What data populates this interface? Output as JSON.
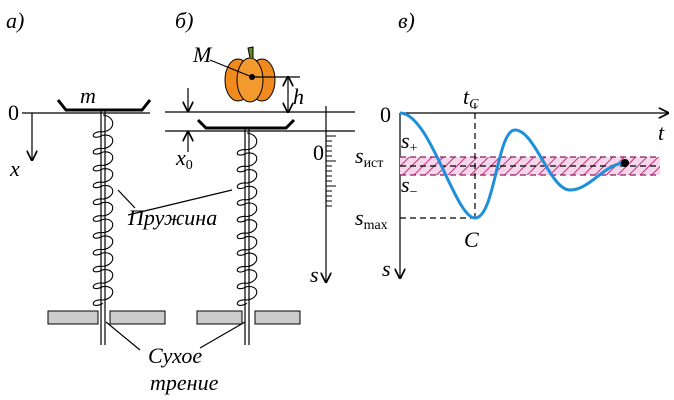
{
  "panel_a": {
    "label": "а)",
    "mass": "m",
    "origin": "0",
    "axis": "x"
  },
  "panel_b": {
    "label": "б)",
    "mass": "M",
    "height": "h",
    "offset": {
      "base": "x",
      "sub": "0"
    },
    "scale_zero": "0",
    "axis": "s"
  },
  "spring_label": "Пружина",
  "friction_label": [
    "Сухое",
    "трение"
  ],
  "panel_c": {
    "label": "в)",
    "origin": "0",
    "t_c": {
      "base": "t",
      "sub": "C"
    },
    "t_axis": "t",
    "s_plus": {
      "base": "s",
      "sub": "+"
    },
    "s_ist": {
      "base": "s",
      "sub": "ист"
    },
    "s_minus": {
      "base": "s",
      "sub": "−"
    },
    "s_max": {
      "base": "s",
      "sub": "max"
    },
    "point": "C",
    "s_axis": "s"
  }
}
